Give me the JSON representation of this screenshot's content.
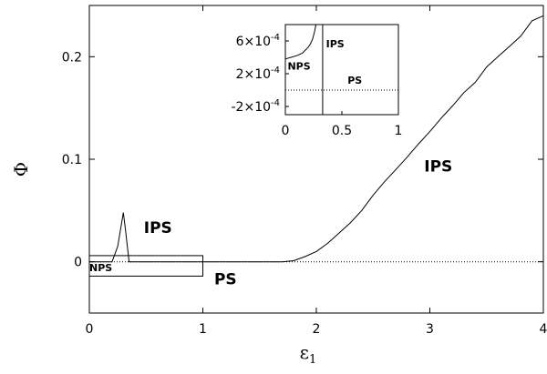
{
  "chart_data": {
    "type": "line",
    "xlabel": "ε",
    "xlabel_sub": "1",
    "ylabel": "Φ",
    "xlim": [
      0,
      4
    ],
    "ylim": [
      -0.05,
      0.25
    ],
    "x_ticks": [
      "0",
      "1",
      "2",
      "3",
      "4"
    ],
    "y_ticks": [
      "0",
      "0.1",
      "0.2"
    ],
    "grid": false,
    "legend": "none",
    "series": [
      {
        "line_style": "solid",
        "color": "#000000",
        "x": [
          0.0,
          0.2,
          0.25,
          0.28,
          0.3,
          0.32,
          0.35,
          0.4,
          1.0,
          1.7,
          1.8,
          1.9,
          2.0,
          2.1,
          2.2,
          2.3,
          2.4,
          2.5,
          2.6,
          2.7,
          2.8,
          2.9,
          3.0,
          3.1,
          3.2,
          3.3,
          3.4,
          3.5,
          3.6,
          3.7,
          3.8,
          3.9,
          4.0
        ],
        "y": [
          0.0,
          0.0,
          0.015,
          0.035,
          0.048,
          0.03,
          0.0,
          0.0,
          0.0,
          0.0,
          0.001,
          0.005,
          0.01,
          0.018,
          0.028,
          0.038,
          0.05,
          0.065,
          0.078,
          0.09,
          0.102,
          0.115,
          0.127,
          0.14,
          0.152,
          0.165,
          0.175,
          0.19,
          0.2,
          0.21,
          0.22,
          0.235,
          0.24
        ]
      },
      {
        "line_style": "dotted",
        "color": "#000000",
        "x": [
          0,
          4
        ],
        "y": [
          0,
          0
        ]
      }
    ],
    "annotations": [
      {
        "text": "IPS",
        "x": 0.48,
        "y": 0.028,
        "size": "large"
      },
      {
        "text": "IPS",
        "x": 2.95,
        "y": 0.088,
        "size": "large"
      },
      {
        "text": "PS",
        "x": 1.1,
        "y": -0.022,
        "size": "large"
      },
      {
        "text": "NPS",
        "x": 0.0,
        "y": -0.009,
        "size": "small"
      }
    ],
    "highlight_box": {
      "xlim": [
        0,
        1
      ],
      "ylim": [
        -0.014,
        0.006
      ]
    },
    "inset": {
      "xlim": [
        0,
        1
      ],
      "ylim": [
        -0.0003,
        0.0008
      ],
      "x_ticks": [
        "0",
        "0.5",
        "1"
      ],
      "y_ticks": [
        {
          "value": -0.0002,
          "base": "-2×10",
          "exp": "-4"
        },
        {
          "value": 0.0002,
          "base": "2×10",
          "exp": "-4"
        },
        {
          "value": 0.0006,
          "base": "6×10",
          "exp": "-4"
        }
      ],
      "vline_x": 0.33,
      "series": [
        {
          "line_style": "solid",
          "color": "#000000",
          "x": [
            0.0,
            0.05,
            0.1,
            0.15,
            0.2,
            0.22,
            0.24,
            0.26,
            0.27,
            0.27
          ],
          "y": [
            0.00038,
            0.0004,
            0.00042,
            0.00045,
            0.00052,
            0.00056,
            0.00062,
            0.00072,
            0.0008,
            0.0008
          ]
        },
        {
          "line_style": "dotted",
          "color": "#000000",
          "x": [
            0,
            1
          ],
          "y": [
            0,
            0
          ]
        }
      ],
      "annotations": [
        {
          "text": "NPS",
          "x": 0.02,
          "y": 0.00025
        },
        {
          "text": "IPS",
          "x": 0.36,
          "y": 0.00052
        },
        {
          "text": "PS",
          "x": 0.55,
          "y": 8e-05
        }
      ]
    }
  }
}
